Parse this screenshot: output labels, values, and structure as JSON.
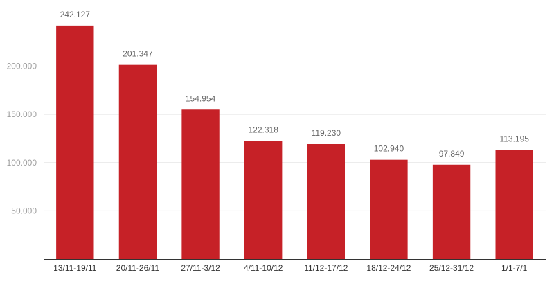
{
  "chart_data": {
    "type": "bar",
    "categories": [
      "13/11-19/11",
      "20/11-26/11",
      "27/11-3/12",
      "4/11-10/12",
      "11/12-17/12",
      "18/12-24/12",
      "25/12-31/12",
      "1/1-7/1"
    ],
    "values": [
      242127,
      201347,
      154954,
      122318,
      119230,
      102940,
      97849,
      113195
    ],
    "value_labels": [
      "242.127",
      "201.347",
      "154.954",
      "122.318",
      "119.230",
      "102.940",
      "97.849",
      "113.195"
    ],
    "yticks": [
      50000,
      100000,
      150000,
      200000
    ],
    "ytick_labels": [
      "50.000",
      "100.000",
      "150.000",
      "200.000"
    ],
    "ylim": [
      0,
      260000
    ],
    "grid": true,
    "colors": {
      "bar": "#c62127"
    }
  }
}
